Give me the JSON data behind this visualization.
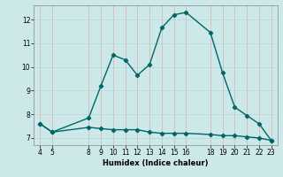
{
  "xlabel": "Humidex (Indice chaleur)",
  "bg_color": "#cce8e8",
  "grid_color": "#b8d8d8",
  "line_color": "#006666",
  "line1_x": [
    4,
    5,
    8,
    9,
    10,
    11,
    12,
    13,
    14,
    15,
    16,
    18,
    19,
    20,
    21,
    22,
    23
  ],
  "line1_y": [
    7.6,
    7.25,
    7.85,
    9.2,
    10.5,
    10.3,
    9.65,
    10.1,
    11.65,
    12.2,
    12.3,
    11.45,
    9.75,
    8.3,
    7.95,
    7.6,
    6.9
  ],
  "line2_x": [
    4,
    5,
    8,
    9,
    10,
    11,
    12,
    13,
    14,
    15,
    16,
    18,
    19,
    20,
    21,
    22,
    23
  ],
  "line2_y": [
    7.6,
    7.25,
    7.45,
    7.4,
    7.35,
    7.35,
    7.35,
    7.25,
    7.2,
    7.2,
    7.2,
    7.15,
    7.1,
    7.1,
    7.05,
    7.0,
    6.9
  ],
  "xticks": [
    4,
    5,
    8,
    9,
    10,
    11,
    12,
    13,
    14,
    15,
    16,
    18,
    19,
    20,
    21,
    22,
    23
  ],
  "yticks": [
    7,
    8,
    9,
    10,
    11,
    12
  ],
  "xlim": [
    3.5,
    23.5
  ],
  "ylim": [
    6.7,
    12.6
  ],
  "marker": "D",
  "markersize": 2.2,
  "linewidth": 1.0,
  "tick_fontsize": 5.5,
  "xlabel_fontsize": 6.0
}
